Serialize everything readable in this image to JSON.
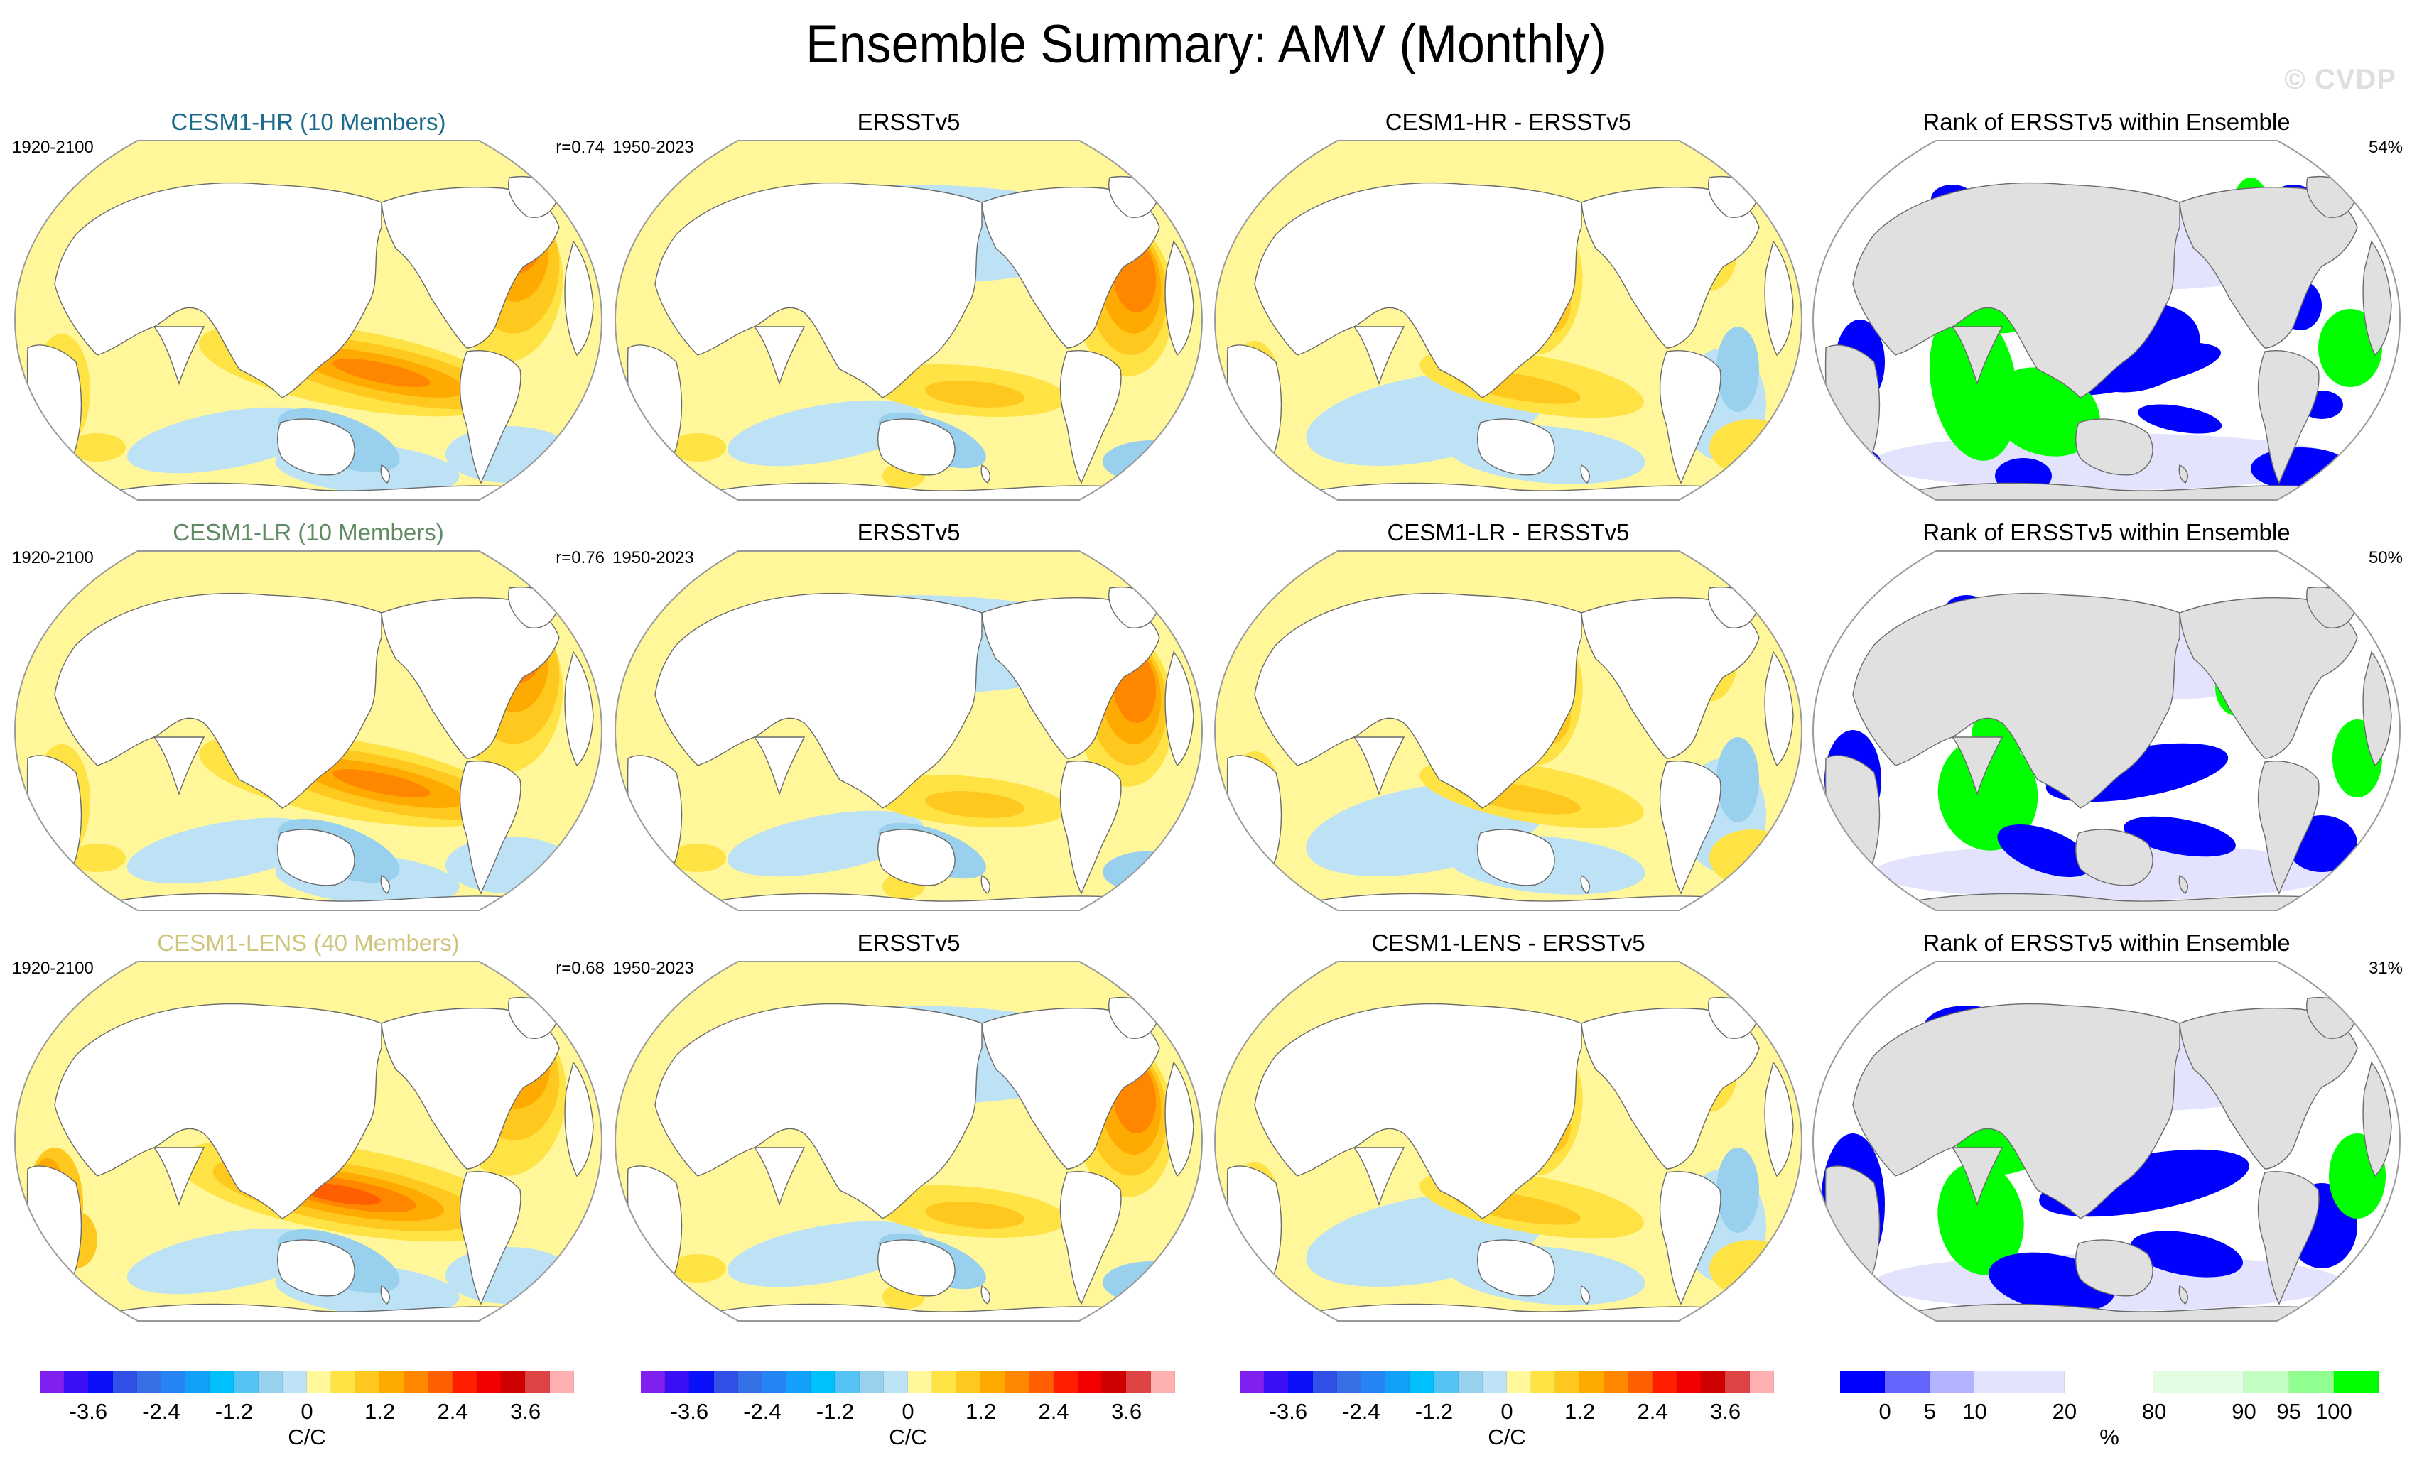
{
  "header": {
    "title": "Ensemble Summary: AMV (Monthly)",
    "watermark": "© CVDP"
  },
  "rows": [
    {
      "model": "CESM1-HR (10 Members)",
      "model_color": "#1d6b8c",
      "model_period": "1920-2100",
      "pattern_corr": "r=0.74",
      "obs_title": "ERSSTv5",
      "obs_period": "1950-2023",
      "diff_title": "CESM1-HR - ERSSTv5",
      "rank_title": "Rank of ERSSTv5 within Ensemble",
      "rank_pct": "54%"
    },
    {
      "model": "CESM1-LR (10 Members)",
      "model_color": "#5f8a62",
      "model_period": "1920-2100",
      "pattern_corr": "r=0.76",
      "obs_title": "ERSSTv5",
      "obs_period": "1950-2023",
      "diff_title": "CESM1-LR - ERSSTv5",
      "rank_title": "Rank of ERSSTv5 within Ensemble",
      "rank_pct": "50%"
    },
    {
      "model": "CESM1-LENS (40 Members)",
      "model_color": "#cfc47e",
      "model_period": "1920-2100",
      "pattern_corr": "r=0.68",
      "obs_title": "ERSSTv5",
      "obs_period": "1950-2023",
      "diff_title": "CESM1-LENS - ERSSTv5",
      "rank_title": "Rank of ERSSTv5 within Ensemble",
      "rank_pct": "31%"
    }
  ],
  "chart_data": [
    {
      "type": "heatmap",
      "title": "AMV regression pattern maps (model ensemble mean, observations, difference)",
      "projection": "Robinson-like global map, Pacific-centered",
      "colorbar": {
        "unit": "C/C",
        "tick_labels": [
          "-3.6",
          "-2.4",
          "-1.2",
          "0",
          "1.2",
          "2.4",
          "3.6"
        ],
        "levels": [
          -4.0,
          -3.6,
          -3.2,
          -2.8,
          -2.4,
          -2.0,
          -1.6,
          -1.2,
          -0.8,
          -0.4,
          0,
          0.4,
          0.8,
          1.2,
          1.6,
          2.0,
          2.4,
          2.8,
          3.2,
          3.6,
          4.0
        ],
        "colors": [
          "#7f1ff0",
          "#3b0ff5",
          "#0a10f8",
          "#3050e6",
          "#3670e6",
          "#2585f5",
          "#12a0fa",
          "#00c0fc",
          "#55c4f5",
          "#98d0ee",
          "#bde2f5",
          "#fff79a",
          "#ffe243",
          "#ffc81e",
          "#ffaa00",
          "#ff8700",
          "#ff5f00",
          "#ff1f00",
          "#f20000",
          "#cf0000",
          "#de4444",
          "#ffb0b0"
        ],
        "count": 3
      },
      "panels": [
        "model ensemble mean",
        "ERSSTv5 observed",
        "model minus observed"
      ],
      "pattern_correlations": {
        "CESM1-HR": 0.74,
        "CESM1-LR": 0.76,
        "CESM1-LENS": 0.68
      }
    },
    {
      "type": "heatmap",
      "title": "Rank of ERSSTv5 within Ensemble",
      "colorbar": {
        "unit": "%",
        "tick_labels": [
          "0",
          "5",
          "10",
          "20",
          "80",
          "90",
          "95",
          "100"
        ],
        "colors": [
          "#0000ff",
          "#6666ff",
          "#b3b3ff",
          "#e3e3fd",
          "#ffffff",
          "#e3fde3",
          "#c2fdc2",
          "#90ff90",
          "#00ff00"
        ],
        "relative_widths": [
          1,
          1,
          1,
          2,
          2,
          2,
          1,
          1,
          1
        ]
      },
      "rank_within_ensemble_pct": {
        "CESM1-HR": 54,
        "CESM1-LR": 50,
        "CESM1-LENS": 31
      }
    }
  ]
}
